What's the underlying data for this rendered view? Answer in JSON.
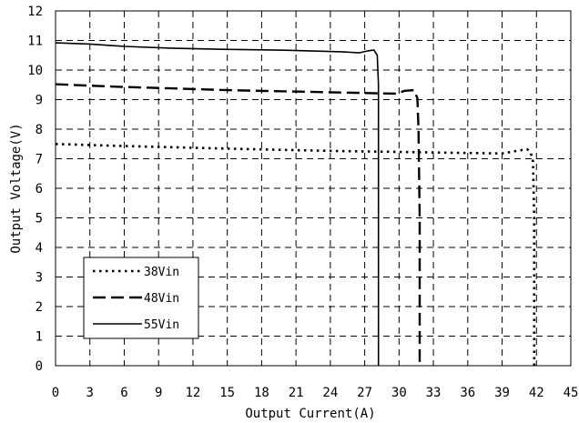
{
  "chart_data": {
    "type": "line",
    "title": "",
    "xlabel": "Output Current(A)",
    "ylabel": "Output Voltage(V)",
    "xlim": [
      0,
      45
    ],
    "ylim": [
      0,
      12
    ],
    "xticks": [
      0,
      3,
      6,
      9,
      12,
      15,
      18,
      21,
      24,
      27,
      30,
      33,
      36,
      39,
      42,
      45
    ],
    "yticks": [
      0,
      1,
      2,
      3,
      4,
      5,
      6,
      7,
      8,
      9,
      10,
      11,
      12
    ],
    "grid": true,
    "legend_position": "bottom-left",
    "series": [
      {
        "name": "38Vin",
        "line_style": "dotted",
        "color": "#000000",
        "x": [
          0,
          5,
          10,
          15,
          20,
          25,
          30,
          35,
          39,
          40.5,
          41.2,
          41.5,
          41.7,
          41.8,
          41.8
        ],
        "y": [
          7.5,
          7.44,
          7.39,
          7.34,
          7.3,
          7.26,
          7.23,
          7.2,
          7.18,
          7.28,
          7.32,
          7.2,
          6.9,
          5.0,
          0
        ]
      },
      {
        "name": "48Vin",
        "line_style": "dashed",
        "color": "#000000",
        "x": [
          0,
          5,
          10,
          15,
          20,
          25,
          29.8,
          30.5,
          31.3,
          31.6,
          31.7,
          31.8,
          31.8
        ],
        "y": [
          9.52,
          9.44,
          9.38,
          9.32,
          9.28,
          9.24,
          9.2,
          9.3,
          9.32,
          9.05,
          8.0,
          5.0,
          0
        ]
      },
      {
        "name": "55Vin",
        "line_style": "solid",
        "color": "#000000",
        "x": [
          0,
          3,
          6,
          10,
          15,
          20,
          25,
          26.5,
          27.3,
          27.8,
          28.1,
          28.2,
          28.2
        ],
        "y": [
          10.92,
          10.88,
          10.8,
          10.74,
          10.7,
          10.67,
          10.62,
          10.58,
          10.65,
          10.68,
          10.5,
          9.5,
          0
        ]
      }
    ]
  }
}
